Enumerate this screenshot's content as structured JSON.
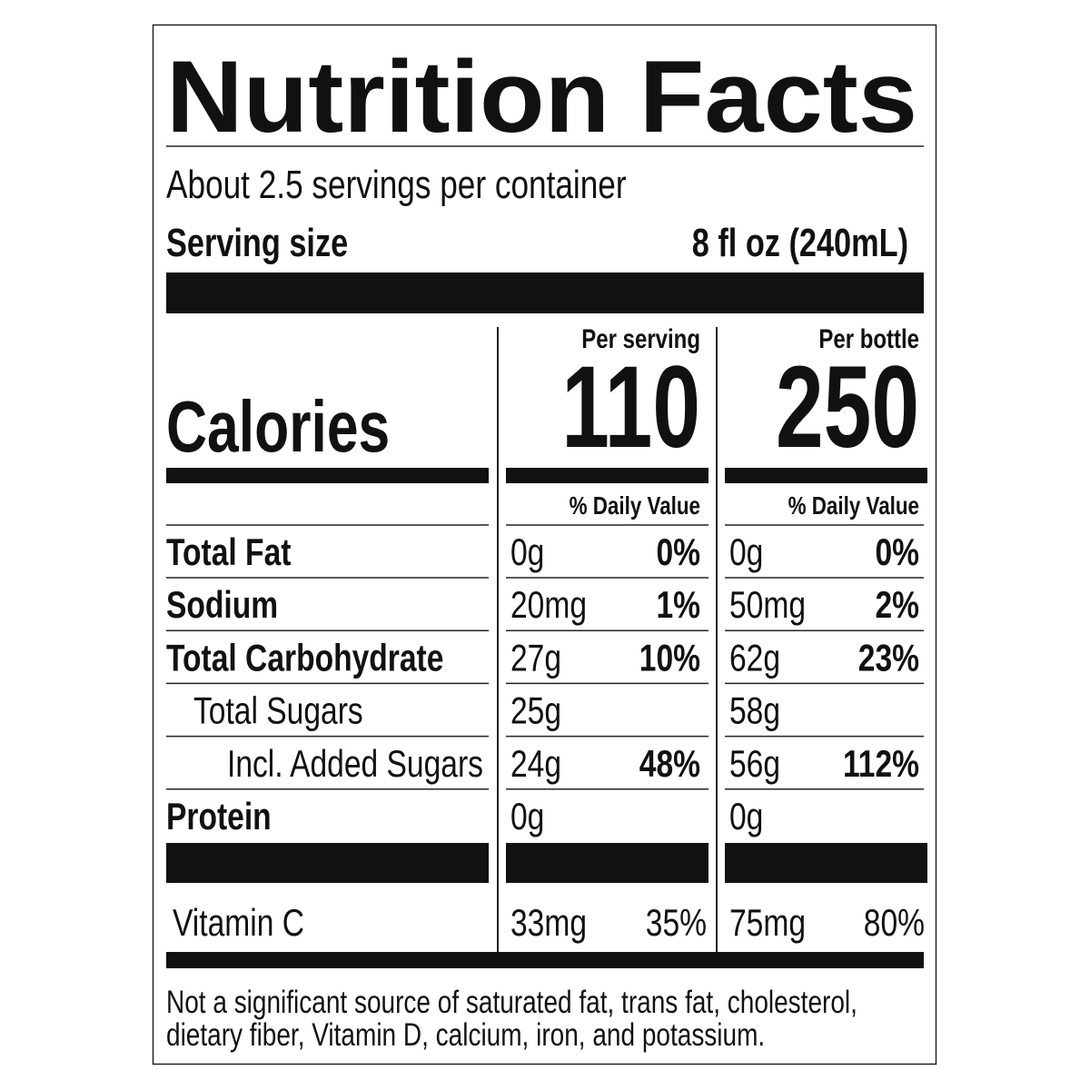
{
  "title": "Nutrition Facts",
  "servings_per_container": "About 2.5 servings per container",
  "serving_size": {
    "label": "Serving size",
    "value": "8 fl oz (240mL)"
  },
  "calories": {
    "label": "Calories",
    "columns": [
      {
        "header": "Per serving",
        "value": 110,
        "daily_value_header": "% Daily Value"
      },
      {
        "header": "Per bottle",
        "value": 250,
        "daily_value_header": "% Daily Value"
      }
    ]
  },
  "nutrients": [
    {
      "name": "Total Fat",
      "level": 0,
      "columns": [
        [
          "0g",
          "0%"
        ],
        [
          "0g",
          "0%"
        ]
      ]
    },
    {
      "name": "Sodium",
      "level": 0,
      "columns": [
        [
          "20mg",
          "1%"
        ],
        [
          "50mg",
          "2%"
        ]
      ]
    },
    {
      "name": "Total Carbohydrate",
      "level": 0,
      "columns": [
        [
          "27g",
          "10%"
        ],
        [
          "62g",
          "23%"
        ]
      ]
    },
    {
      "name": "Total Sugars",
      "level": 1,
      "columns": [
        [
          "25g"
        ],
        [
          "58g"
        ]
      ]
    },
    {
      "name": "Incl. Added Sugars",
      "level": 2,
      "columns": [
        [
          "24g",
          "48%"
        ],
        [
          "56g",
          "112%"
        ]
      ]
    },
    {
      "name": "Protein",
      "level": 0,
      "columns": [
        [
          "0g"
        ],
        [
          "0g"
        ]
      ]
    }
  ],
  "vitamins": [
    {
      "name": "Vitamin C",
      "columns": [
        [
          "33mg",
          "35%"
        ],
        [
          "75mg",
          "80%"
        ]
      ]
    }
  ],
  "footnote": [
    "Not a significant source of saturated fat, trans fat, cholesterol,",
    "dietary fiber, Vitamin D, calcium, iron, and potassium."
  ]
}
